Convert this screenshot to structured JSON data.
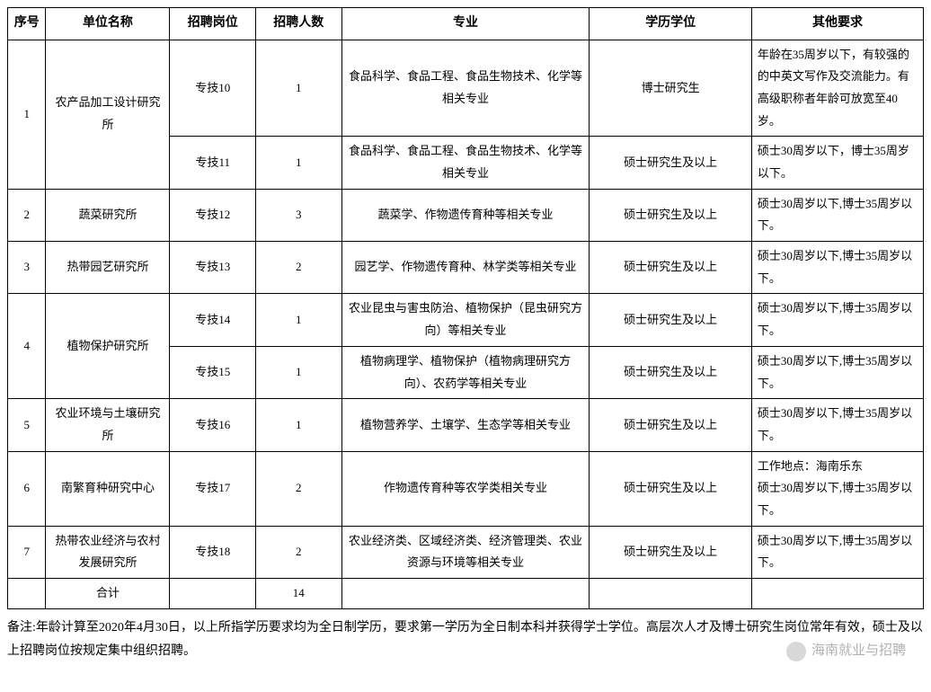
{
  "headers": {
    "seq": "序号",
    "unit": "单位名称",
    "position": "招聘岗位",
    "count": "招聘人数",
    "major": "专业",
    "education": "学历学位",
    "other": "其他要求"
  },
  "rows": [
    {
      "seq": "1",
      "unit": "农产品加工设计研究所",
      "position": "专技10",
      "count": "1",
      "major": "食品科学、食品工程、食品生物技术、化学等相关专业",
      "education": "博士研究生",
      "other": "年龄在35周岁以下，有较强的的中英文写作及交流能力。有高级职称者年龄可放宽至40岁。"
    },
    {
      "seq": "",
      "unit": "",
      "position": "专技11",
      "count": "1",
      "major": "食品科学、食品工程、食品生物技术、化学等相关专业",
      "education": "硕士研究生及以上",
      "other": "硕士30周岁以下，博士35周岁以下。"
    },
    {
      "seq": "2",
      "unit": "蔬菜研究所",
      "position": "专技12",
      "count": "3",
      "major": "蔬菜学、作物遗传育种等相关专业",
      "education": "硕士研究生及以上",
      "other": "硕士30周岁以下,博士35周岁以下。"
    },
    {
      "seq": "3",
      "unit": "热带园艺研究所",
      "position": "专技13",
      "count": "2",
      "major": "园艺学、作物遗传育种、林学类等相关专业",
      "education": "硕士研究生及以上",
      "other": "硕士30周岁以下,博士35周岁以下。"
    },
    {
      "seq": "4",
      "unit": "植物保护研究所",
      "position": "专技14",
      "count": "1",
      "major": "农业昆虫与害虫防治、植物保护（昆虫研究方向）等相关专业",
      "education": "硕士研究生及以上",
      "other": "硕士30周岁以下,博士35周岁以下。"
    },
    {
      "seq": "",
      "unit": "",
      "position": "专技15",
      "count": "1",
      "major": "植物病理学、植物保护（植物病理研究方向）、农药学等相关专业",
      "education": "硕士研究生及以上",
      "other": "硕士30周岁以下,博士35周岁以下。"
    },
    {
      "seq": "5",
      "unit": "农业环境与土壤研究所",
      "position": "专技16",
      "count": "1",
      "major": "植物营养学、土壤学、生态学等相关专业",
      "education": "硕士研究生及以上",
      "other": "硕士30周岁以下,博士35周岁以下。"
    },
    {
      "seq": "6",
      "unit": "南繁育种研究中心",
      "position": "专技17",
      "count": "2",
      "major": "作物遗传育种等农学类相关专业",
      "education": "硕士研究生及以上",
      "other": "工作地点：海南乐东\n硕士30周岁以下,博士35周岁以下。"
    },
    {
      "seq": "7",
      "unit": "热带农业经济与农村发展研究所",
      "position": "专技18",
      "count": "2",
      "major": "农业经济类、区域经济类、经济管理类、农业资源与环境等相关专业",
      "education": "硕士研究生及以上",
      "other": "硕士30周岁以下,博士35周岁以下。"
    }
  ],
  "total": {
    "label": "合计",
    "value": "14"
  },
  "footnote": "备注:年龄计算至2020年4月30日，以上所指学历要求均为全日制学历，要求第一学历为全日制本科并获得学士学位。高层次人才及博士研究生岗位常年有效，硕士及以上招聘岗位按规定集中组织招聘。",
  "watermark": "海南就业与招聘"
}
